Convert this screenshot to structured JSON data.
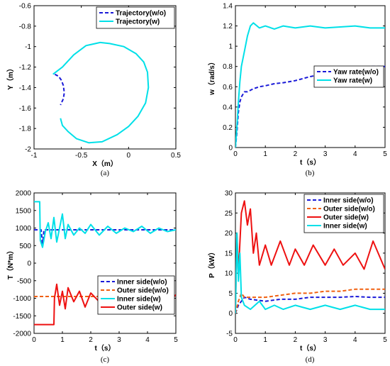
{
  "chart_data": [
    {
      "type": "line",
      "caption": "(a)",
      "xlabel": "X（m）",
      "ylabel": "Y（m）",
      "xlim": [
        -1,
        0.5
      ],
      "ylim": [
        -2,
        -0.6
      ],
      "xticks": [
        "-1",
        "-0.5",
        "0",
        "0.5"
      ],
      "yticks": [
        "-0.6",
        "-0.8",
        "-1",
        "-1.2",
        "-1.4",
        "-1.6",
        "-1.8",
        "-2"
      ],
      "legend_position": "top-right",
      "series": [
        {
          "name": "Trajectory(w/o)",
          "color": "#1a1ad8",
          "dash": true,
          "x": [
            -0.78,
            -0.74,
            -0.71,
            -0.69,
            -0.68,
            -0.69,
            -0.72
          ],
          "y": [
            -1.27,
            -1.29,
            -1.33,
            -1.38,
            -1.45,
            -1.51,
            -1.57
          ]
        },
        {
          "name": "Trajectory(w)",
          "color": "#00e0e8",
          "dash": false,
          "x": [
            -0.8,
            -0.7,
            -0.58,
            -0.45,
            -0.3,
            -0.2,
            -0.05,
            0.08,
            0.16,
            0.2,
            0.21,
            0.18,
            0.1,
            0.0,
            -0.12,
            -0.28,
            -0.42,
            -0.55,
            -0.64,
            -0.7,
            -0.72
          ],
          "y": [
            -1.27,
            -1.2,
            -1.08,
            -0.99,
            -0.96,
            -0.97,
            -1.0,
            -1.07,
            -1.15,
            -1.25,
            -1.4,
            -1.55,
            -1.68,
            -1.78,
            -1.86,
            -1.93,
            -1.94,
            -1.9,
            -1.83,
            -1.77,
            -1.7
          ]
        }
      ]
    },
    {
      "type": "line",
      "caption": "(b)",
      "xlabel": "t（s）",
      "ylabel": "w（rad/s）",
      "xlim": [
        0,
        5
      ],
      "ylim": [
        0,
        1.4
      ],
      "xticks": [
        "0",
        "1",
        "2",
        "3",
        "4",
        "5"
      ],
      "yticks": [
        "0",
        "0.2",
        "0.4",
        "0.6",
        "0.8",
        "1",
        "1.2",
        "1.4"
      ],
      "legend_position": "center-right",
      "series": [
        {
          "name": "Yaw rate(w/o)",
          "color": "#1a1ad8",
          "dash": true,
          "x": [
            0,
            0.05,
            0.1,
            0.15,
            0.2,
            0.3,
            0.4,
            0.6,
            0.8,
            1.0,
            1.3,
            1.6,
            2.0,
            2.5,
            3.0,
            3.5,
            4.0,
            4.5,
            5.0
          ],
          "y": [
            0.0,
            0.15,
            0.35,
            0.45,
            0.5,
            0.55,
            0.55,
            0.58,
            0.6,
            0.61,
            0.63,
            0.64,
            0.66,
            0.7,
            0.73,
            0.75,
            0.78,
            0.8,
            0.8
          ]
        },
        {
          "name": "Yaw rate(w)",
          "color": "#00e0e8",
          "dash": false,
          "x": [
            0,
            0.05,
            0.1,
            0.15,
            0.2,
            0.3,
            0.4,
            0.5,
            0.6,
            0.8,
            1.0,
            1.3,
            1.6,
            2.0,
            2.5,
            3.0,
            3.5,
            4.0,
            4.5,
            5.0
          ],
          "y": [
            0.0,
            0.2,
            0.45,
            0.65,
            0.8,
            0.95,
            1.1,
            1.2,
            1.23,
            1.18,
            1.2,
            1.17,
            1.2,
            1.18,
            1.2,
            1.18,
            1.19,
            1.2,
            1.18,
            1.18
          ]
        }
      ]
    },
    {
      "type": "line",
      "caption": "(c)",
      "xlabel": "t（s）",
      "ylabel": "T（N*m）",
      "xlim": [
        0,
        5
      ],
      "ylim": [
        -2000,
        2000
      ],
      "xticks": [
        "0",
        "1",
        "2",
        "3",
        "4",
        "5"
      ],
      "yticks": [
        "2000",
        "1500",
        "1000",
        "500",
        "0",
        "-500",
        "-1000",
        "-1500",
        "-2000"
      ],
      "legend_position": "center-right",
      "series": [
        {
          "name": "Inner side(w/o)",
          "color": "#1a1ad8",
          "dash": true,
          "x": [
            0,
            0.25,
            0.3,
            0.35,
            0.4,
            1.0,
            2.0,
            3.0,
            4.0,
            5.0
          ],
          "y": [
            950,
            950,
            500,
            950,
            950,
            950,
            950,
            950,
            950,
            950
          ]
        },
        {
          "name": "Outer side(w/o)",
          "color": "#f06010",
          "dash": true,
          "x": [
            0,
            5.0
          ],
          "y": [
            -950,
            -950
          ]
        },
        {
          "name": "Inner side(w)",
          "color": "#00e0e8",
          "dash": false,
          "x": [
            0,
            0.2,
            0.22,
            0.3,
            0.4,
            0.5,
            0.6,
            0.7,
            0.8,
            0.9,
            1.0,
            1.1,
            1.2,
            1.4,
            1.6,
            1.8,
            2.0,
            2.3,
            2.6,
            2.9,
            3.2,
            3.5,
            3.8,
            4.1,
            4.4,
            4.7,
            5.0
          ],
          "y": [
            1750,
            1750,
            650,
            450,
            900,
            1150,
            700,
            1300,
            600,
            1000,
            1400,
            700,
            1100,
            800,
            1000,
            850,
            1100,
            800,
            1050,
            850,
            1000,
            900,
            1050,
            850,
            1000,
            900,
            950
          ]
        },
        {
          "name": "Outer side(w)",
          "color": "#ee1111",
          "dash": false,
          "x": [
            0,
            0.7,
            0.72,
            0.8,
            0.9,
            1.0,
            1.1,
            1.2,
            1.4,
            1.6,
            1.8,
            2.0,
            2.3,
            2.6,
            2.9,
            3.2,
            3.5,
            3.8,
            4.1,
            4.4,
            4.7,
            5.0
          ],
          "y": [
            -1750,
            -1750,
            -1000,
            -600,
            -1200,
            -800,
            -1300,
            -700,
            -1100,
            -800,
            -1250,
            -850,
            -1100,
            -800,
            -1200,
            -900,
            -1150,
            -800,
            -1300,
            -900,
            -1150,
            -900
          ]
        }
      ]
    },
    {
      "type": "line",
      "caption": "(d)",
      "xlabel": "t（s）",
      "ylabel": "P（kW）",
      "xlim": [
        0,
        5
      ],
      "ylim": [
        -5,
        30
      ],
      "xticks": [
        "0",
        "1",
        "2",
        "3",
        "4",
        "5"
      ],
      "yticks": [
        "-5",
        "0",
        "5",
        "10",
        "15",
        "20",
        "25",
        "30"
      ],
      "legend_position": "top-right",
      "series": [
        {
          "name": "Inner side(w/o)",
          "color": "#1a1ad8",
          "dash": true,
          "x": [
            0,
            0.1,
            0.2,
            0.3,
            0.5,
            1.0,
            1.5,
            2.0,
            2.5,
            3.0,
            3.5,
            4.0,
            4.5,
            5.0
          ],
          "y": [
            0,
            2,
            3,
            4,
            3.5,
            3,
            3.5,
            3.5,
            4,
            4,
            4,
            4.2,
            4,
            4
          ]
        },
        {
          "name": "Outer side(w/o)",
          "color": "#f06010",
          "dash": true,
          "x": [
            0,
            0.1,
            0.2,
            0.3,
            0.5,
            1.0,
            1.5,
            2.0,
            2.5,
            3.0,
            3.5,
            4.0,
            4.5,
            5.0
          ],
          "y": [
            0,
            3,
            5,
            4,
            4,
            4,
            4.5,
            5,
            5,
            5.5,
            5.5,
            6,
            6,
            6
          ]
        },
        {
          "name": "Outer side(w)",
          "color": "#ee1111",
          "dash": false,
          "x": [
            0,
            0.05,
            0.1,
            0.2,
            0.3,
            0.4,
            0.5,
            0.6,
            0.7,
            0.8,
            1.0,
            1.2,
            1.5,
            1.8,
            2.0,
            2.3,
            2.6,
            3.0,
            3.3,
            3.6,
            4.0,
            4.3,
            4.6,
            5.0
          ],
          "y": [
            0,
            20,
            10,
            25,
            28,
            22,
            26,
            15,
            20,
            12,
            17,
            12,
            18,
            12,
            16,
            12,
            17,
            12,
            16,
            12,
            15,
            11,
            18,
            11
          ]
        },
        {
          "name": "Inner side(w)",
          "color": "#00e0e8",
          "dash": false,
          "x": [
            0,
            0.05,
            0.1,
            0.15,
            0.2,
            0.3,
            0.5,
            0.8,
            1.0,
            1.3,
            1.6,
            2.0,
            2.5,
            3.0,
            3.5,
            4.0,
            4.5,
            5.0
          ],
          "y": [
            0,
            20,
            8,
            15,
            4,
            2,
            1,
            3,
            1,
            2,
            1,
            2,
            1,
            2,
            1,
            2,
            1,
            1
          ]
        }
      ]
    }
  ]
}
